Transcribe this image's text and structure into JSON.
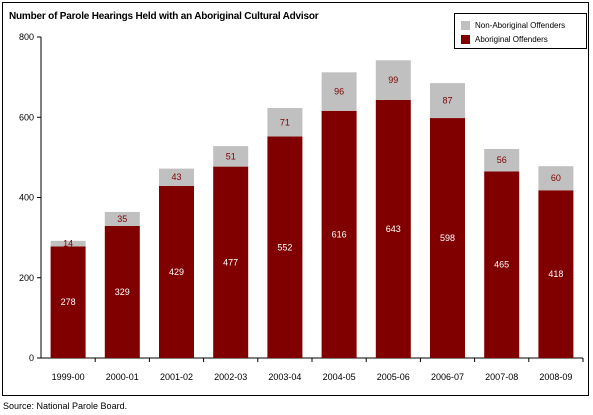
{
  "title": "Number of Parole Hearings Held with an Aboriginal Cultural Advisor",
  "source": "Source: National Parole Board.",
  "colors": {
    "aboriginal": "#800000",
    "non_aboriginal": "#c0c0c0",
    "label_on_aboriginal": "#ffffff",
    "label_on_non_aboriginal": "#800000"
  },
  "legend": {
    "position": "top-right",
    "items": [
      {
        "label": "Non-Aboriginal Offenders",
        "color": "#c0c0c0"
      },
      {
        "label": "Aboriginal Offenders",
        "color": "#800000"
      }
    ]
  },
  "chart_data": {
    "type": "bar",
    "stacked": true,
    "title": "Number of Parole Hearings Held with an Aboriginal Cultural Advisor",
    "categories": [
      "1999-00",
      "2000-01",
      "2001-02",
      "2002-03",
      "2003-04",
      "2004-05",
      "2005-06",
      "2006-07",
      "2007-08",
      "2008-09"
    ],
    "series": [
      {
        "name": "Aboriginal Offenders",
        "values": [
          278,
          329,
          429,
          477,
          552,
          616,
          643,
          598,
          465,
          418
        ]
      },
      {
        "name": "Non-Aboriginal Offenders",
        "values": [
          14,
          35,
          43,
          51,
          71,
          96,
          99,
          87,
          56,
          60
        ]
      }
    ],
    "xlabel": "",
    "ylabel": "",
    "ylim": [
      0,
      800
    ],
    "yticks": [
      0,
      200,
      400,
      600,
      800
    ],
    "grid": false,
    "data_labels": true
  }
}
